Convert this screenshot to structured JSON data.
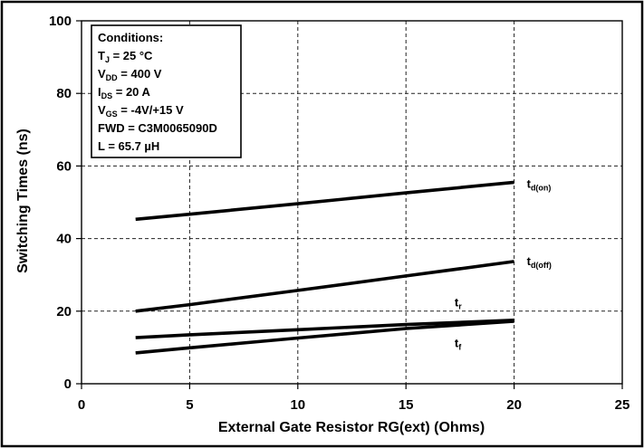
{
  "chart_data": {
    "type": "line",
    "xlabel": "External Gate Resistor RG(ext) (Ohms)",
    "ylabel": "Switching Times (ns)",
    "xlim": [
      0,
      25
    ],
    "ylim": [
      0,
      100
    ],
    "xticks": [
      0,
      5,
      10,
      15,
      20,
      25
    ],
    "yticks": [
      0,
      20,
      40,
      60,
      80,
      100
    ],
    "grid": true,
    "series": [
      {
        "name": "td(on)",
        "color": "#000000",
        "x": [
          2.5,
          5,
          10,
          15,
          20
        ],
        "y": [
          45.3,
          46.7,
          49.6,
          52.6,
          55.5
        ]
      },
      {
        "name": "td(off)",
        "color": "#000000",
        "x": [
          2.5,
          5,
          10,
          15,
          20
        ],
        "y": [
          20.0,
          21.8,
          25.7,
          29.7,
          33.7
        ]
      },
      {
        "name": "tr",
        "color": "#000000",
        "x": [
          2.5,
          5,
          10,
          15,
          20
        ],
        "y": [
          12.7,
          13.5,
          14.9,
          16.3,
          17.5
        ]
      },
      {
        "name": "tf",
        "color": "#000000",
        "x": [
          2.5,
          5,
          10,
          15,
          20
        ],
        "y": [
          8.5,
          9.9,
          12.6,
          15.2,
          17.2
        ]
      }
    ]
  },
  "conditions": {
    "title": "Conditions:",
    "lines": [
      {
        "symbol": "T",
        "subscript": "J",
        "text": " = 25 °C"
      },
      {
        "symbol": "V",
        "subscript": "DD",
        "text": " = 400 V"
      },
      {
        "symbol": "I",
        "subscript": "DS",
        "text": " = 20 A"
      },
      {
        "symbol": "V",
        "subscript": "GS",
        "text": " = -4V/+15 V"
      },
      {
        "text": "FWD = C3M0065090D"
      },
      {
        "text": "L = 65.7 µH"
      }
    ]
  }
}
